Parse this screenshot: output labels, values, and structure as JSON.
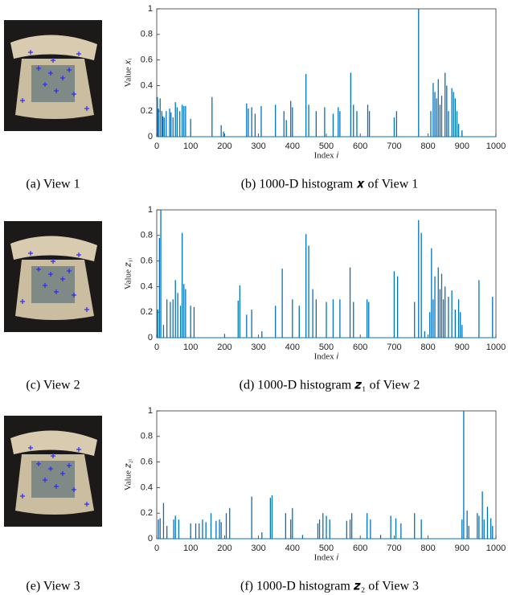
{
  "images": [
    {
      "caption": "(a) View 1"
    },
    {
      "caption": "(c) View 2"
    },
    {
      "caption": "(e) View 3"
    }
  ],
  "chart_data": [
    {
      "type": "bar",
      "caption": "(b) 1000-D histogram 𝒙 of View 1",
      "x_label": "Index 𝑖",
      "y_label": "Value 𝑥ᵢ",
      "color": "#0072bd",
      "xlim": [
        0,
        1000
      ],
      "xticks": [
        0,
        100,
        200,
        300,
        400,
        500,
        600,
        700,
        800,
        900,
        1000
      ],
      "ylim": [
        0,
        1
      ],
      "yticks": [
        0,
        0.2,
        0.4,
        0.6,
        0.8,
        1
      ],
      "x": [
        2,
        5,
        10,
        15,
        18,
        22,
        28,
        38,
        42,
        48,
        55,
        60,
        68,
        75,
        80,
        85,
        100,
        163,
        190,
        197,
        265,
        270,
        280,
        290,
        308,
        350,
        375,
        382,
        395,
        400,
        440,
        448,
        470,
        495,
        520,
        535,
        540,
        572,
        580,
        590,
        622,
        627,
        700,
        707,
        772,
        808,
        815,
        820,
        825,
        830,
        835,
        840,
        850,
        855,
        860,
        870,
        875,
        880,
        885,
        890,
        900
      ],
      "values": [
        0.31,
        0.22,
        0.3,
        0.2,
        0.16,
        0.15,
        0.2,
        0.22,
        0.19,
        0.15,
        0.27,
        0.23,
        0.2,
        0.25,
        0.24,
        0.24,
        0.14,
        0.31,
        0.09,
        0.04,
        0.26,
        0.22,
        0.23,
        0.18,
        0.24,
        0.25,
        0.2,
        0.13,
        0.28,
        0.23,
        0.49,
        0.25,
        0.2,
        0.23,
        0.18,
        0.23,
        0.2,
        0.5,
        0.25,
        0.2,
        0.25,
        0.2,
        0.15,
        0.2,
        1.0,
        0.2,
        0.42,
        0.35,
        0.3,
        0.45,
        0.25,
        0.32,
        0.5,
        0.4,
        0.2,
        0.38,
        0.35,
        0.3,
        0.2,
        0.1,
        0.05
      ]
    },
    {
      "type": "bar",
      "caption": "(d) 1000-D histogram 𝒛₁ of View 2",
      "x_label": "Index 𝑖",
      "y_label": "Value 𝑧₁ᵢ",
      "color": "#0072bd",
      "xlim": [
        0,
        1000
      ],
      "xticks": [
        0,
        100,
        200,
        300,
        400,
        500,
        600,
        700,
        800,
        900,
        1000
      ],
      "ylim": [
        0,
        1
      ],
      "yticks": [
        0,
        0.2,
        0.4,
        0.6,
        0.8,
        1
      ],
      "x": [
        3,
        8,
        12,
        20,
        30,
        40,
        48,
        55,
        62,
        70,
        75,
        80,
        85,
        100,
        110,
        200,
        240,
        245,
        265,
        280,
        310,
        350,
        370,
        400,
        420,
        440,
        448,
        460,
        470,
        500,
        520,
        540,
        570,
        580,
        620,
        625,
        700,
        710,
        760,
        772,
        780,
        790,
        805,
        810,
        815,
        820,
        830,
        835,
        840,
        845,
        850,
        860,
        870,
        880,
        890,
        895,
        900,
        950,
        990
      ],
      "values": [
        0.22,
        0.78,
        1.0,
        0.1,
        0.3,
        0.28,
        0.3,
        0.45,
        0.35,
        0.25,
        0.82,
        0.42,
        0.38,
        0.25,
        0.24,
        0.03,
        0.29,
        0.41,
        0.18,
        0.22,
        0.05,
        0.25,
        0.54,
        0.3,
        0.25,
        0.81,
        0.72,
        0.38,
        0.3,
        0.28,
        0.3,
        0.3,
        0.55,
        0.28,
        0.3,
        0.28,
        0.52,
        0.48,
        0.28,
        0.92,
        0.82,
        0.05,
        0.2,
        0.7,
        0.3,
        0.48,
        0.55,
        0.38,
        0.5,
        0.3,
        0.4,
        0.32,
        0.37,
        0.22,
        0.3,
        0.2,
        0.1,
        0.45,
        0.32
      ]
    },
    {
      "type": "bar",
      "caption": "(f) 1000-D histogram 𝒛₂ of View 3",
      "x_label": "Index 𝑖",
      "y_label": "Value 𝑧₂ᵢ",
      "color": "#0072bd",
      "xlim": [
        0,
        1000
      ],
      "xticks": [
        0,
        100,
        200,
        300,
        400,
        500,
        600,
        700,
        800,
        900,
        1000
      ],
      "ylim": [
        0,
        1
      ],
      "yticks": [
        0,
        0.2,
        0.4,
        0.6,
        0.8,
        1
      ],
      "x": [
        5,
        10,
        20,
        30,
        50,
        55,
        65,
        100,
        115,
        125,
        135,
        145,
        160,
        175,
        185,
        190,
        205,
        215,
        280,
        310,
        335,
        340,
        380,
        395,
        400,
        430,
        475,
        480,
        490,
        500,
        510,
        560,
        570,
        575,
        620,
        630,
        660,
        690,
        705,
        720,
        760,
        780,
        900,
        905,
        915,
        920,
        945,
        950,
        960,
        965,
        975,
        985,
        990
      ],
      "values": [
        0.15,
        0.16,
        0.28,
        0.1,
        0.15,
        0.18,
        0.15,
        0.12,
        0.12,
        0.12,
        0.15,
        0.13,
        0.2,
        0.14,
        0.15,
        0.13,
        0.2,
        0.24,
        0.33,
        0.05,
        0.32,
        0.34,
        0.2,
        0.15,
        0.24,
        0.03,
        0.12,
        0.15,
        0.2,
        0.18,
        0.15,
        0.14,
        0.15,
        0.2,
        0.2,
        0.15,
        0.03,
        0.18,
        0.16,
        0.12,
        0.2,
        0.15,
        0.15,
        1.0,
        0.22,
        0.1,
        0.2,
        0.18,
        0.37,
        0.15,
        0.25,
        0.16,
        0.1
      ]
    }
  ]
}
